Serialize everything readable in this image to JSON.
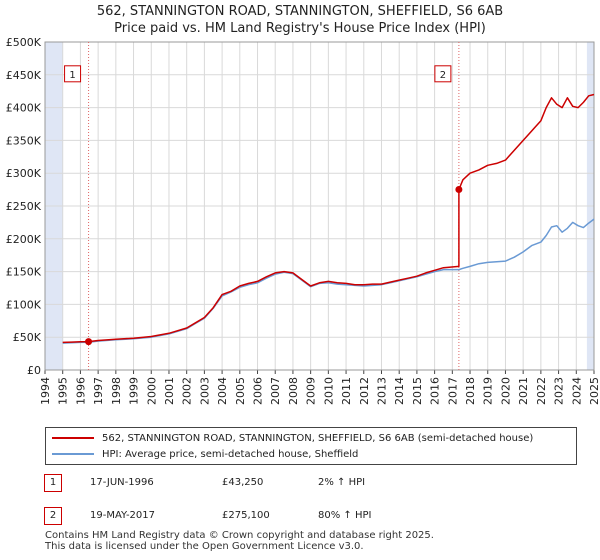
{
  "title_line1": "562, STANNINGTON ROAD, STANNINGTON, SHEFFIELD, S6 6AB",
  "title_line2": "Price paid vs. HM Land Registry's House Price Index (HPI)",
  "colors": {
    "property": "#cc0000",
    "hpi": "#6a9ad4",
    "grid": "#d9d9d9",
    "shade": "#dfe6f5"
  },
  "chart_data": {
    "type": "line",
    "title": "562, STANNINGTON ROAD, STANNINGTON, SHEFFIELD, S6 6AB — Price paid vs. HM Land Registry's House Price Index (HPI)",
    "xlim": [
      1994,
      2025
    ],
    "ylim": [
      0,
      500000
    ],
    "yticks": [
      0,
      50000,
      100000,
      150000,
      200000,
      250000,
      300000,
      350000,
      400000,
      450000,
      500000
    ],
    "ytick_labels": [
      "£0",
      "£50K",
      "£100K",
      "£150K",
      "£200K",
      "£250K",
      "£300K",
      "£350K",
      "£400K",
      "£450K",
      "£500K"
    ],
    "xtick_labels": [
      "1994",
      "1995",
      "1996",
      "1997",
      "1998",
      "1999",
      "2000",
      "2001",
      "2002",
      "2003",
      "2004",
      "2005",
      "2006",
      "2007",
      "2008",
      "2009",
      "2010",
      "2011",
      "2012",
      "2013",
      "2014",
      "2015",
      "2016",
      "2017",
      "2018",
      "2019",
      "2020",
      "2021",
      "2022",
      "2023",
      "2024",
      "2025"
    ],
    "grid": true,
    "shaded_ranges": [
      [
        1994,
        1995
      ],
      [
        2024.6,
        2025
      ]
    ],
    "series": [
      {
        "name": "562, STANNINGTON ROAD, STANNINGTON, SHEFFIELD, S6 6AB (semi-detached house)",
        "x": [
          1995,
          1995.5,
          1996,
          1996.46,
          1997,
          1998,
          1999,
          2000,
          2001,
          2002,
          2002.5,
          2003,
          2003.5,
          2004,
          2004.5,
          2005,
          2005.5,
          2006,
          2006.5,
          2007,
          2007.5,
          2008,
          2008.5,
          2009,
          2009.5,
          2010,
          2010.5,
          2011,
          2011.5,
          2012,
          2012.5,
          2013,
          2013.5,
          2014,
          2014.5,
          2015,
          2015.5,
          2016,
          2016.5,
          2017.37,
          2017.37,
          2017.6,
          2018,
          2018.5,
          2019,
          2019.5,
          2020,
          2020.5,
          2021,
          2021.5,
          2022,
          2022.3,
          2022.6,
          2022.9,
          2023.2,
          2023.5,
          2023.8,
          2024.1,
          2024.4,
          2024.7,
          2025
        ],
        "values": [
          42000,
          42500,
          43000,
          43250,
          45000,
          47000,
          48500,
          51000,
          56000,
          64000,
          72000,
          80000,
          95000,
          115000,
          120000,
          128000,
          132000,
          135000,
          142000,
          148000,
          150000,
          148000,
          138000,
          128000,
          133000,
          135000,
          133000,
          132000,
          130000,
          130000,
          131000,
          131000,
          134000,
          137000,
          140000,
          143000,
          148000,
          152000,
          156000,
          158000,
          275100,
          290000,
          300000,
          305000,
          312000,
          315000,
          320000,
          335000,
          350000,
          365000,
          380000,
          400000,
          415000,
          405000,
          400000,
          415000,
          402000,
          400000,
          408000,
          418000,
          420000
        ]
      },
      {
        "name": "HPI: Average price, semi-detached house, Sheffield",
        "x": [
          1995,
          1995.5,
          1996,
          1996.46,
          1997,
          1998,
          1999,
          2000,
          2001,
          2002,
          2002.5,
          2003,
          2003.5,
          2004,
          2004.5,
          2005,
          2005.5,
          2006,
          2006.5,
          2007,
          2007.5,
          2008,
          2008.5,
          2009,
          2009.5,
          2010,
          2010.5,
          2011,
          2011.5,
          2012,
          2012.5,
          2013,
          2013.5,
          2014,
          2014.5,
          2015,
          2015.5,
          2016,
          2016.5,
          2017.37,
          2017.6,
          2018,
          2018.5,
          2019,
          2019.5,
          2020,
          2020.5,
          2021,
          2021.5,
          2022,
          2022.3,
          2022.6,
          2022.9,
          2023.2,
          2023.5,
          2023.8,
          2024.1,
          2024.4,
          2024.7,
          2025
        ],
        "values": [
          41000,
          41500,
          42000,
          42400,
          44000,
          46000,
          47500,
          50000,
          55000,
          63000,
          71000,
          79000,
          94000,
          113000,
          119000,
          126000,
          130000,
          133000,
          140000,
          146000,
          149000,
          147000,
          137000,
          127000,
          132000,
          133000,
          131000,
          130000,
          129000,
          128000,
          129000,
          130000,
          133000,
          136000,
          139000,
          142000,
          146000,
          150000,
          153000,
          153000,
          155000,
          158000,
          162000,
          164000,
          165000,
          166000,
          172000,
          180000,
          190000,
          195000,
          205000,
          218000,
          220000,
          210000,
          216000,
          225000,
          220000,
          217000,
          224000,
          230000
        ]
      }
    ],
    "annotations": [
      {
        "label": "1",
        "x": 1996.46,
        "y": 43250
      },
      {
        "label": "2",
        "x": 2017.37,
        "y": 275100
      }
    ]
  },
  "legend": {
    "property_label": "562, STANNINGTON ROAD, STANNINGTON, SHEFFIELD, S6 6AB (semi-detached house)",
    "hpi_label": "HPI: Average price, semi-detached house, Sheffield"
  },
  "transactions": [
    {
      "num": "1",
      "date": "17-JUN-1996",
      "price": "£43,250",
      "hpi": "2% ↑ HPI"
    },
    {
      "num": "2",
      "date": "19-MAY-2017",
      "price": "£275,100",
      "hpi": "80% ↑ HPI"
    }
  ],
  "footer_line1": "Contains HM Land Registry data © Crown copyright and database right 2025.",
  "footer_line2": "This data is licensed under the Open Government Licence v3.0."
}
